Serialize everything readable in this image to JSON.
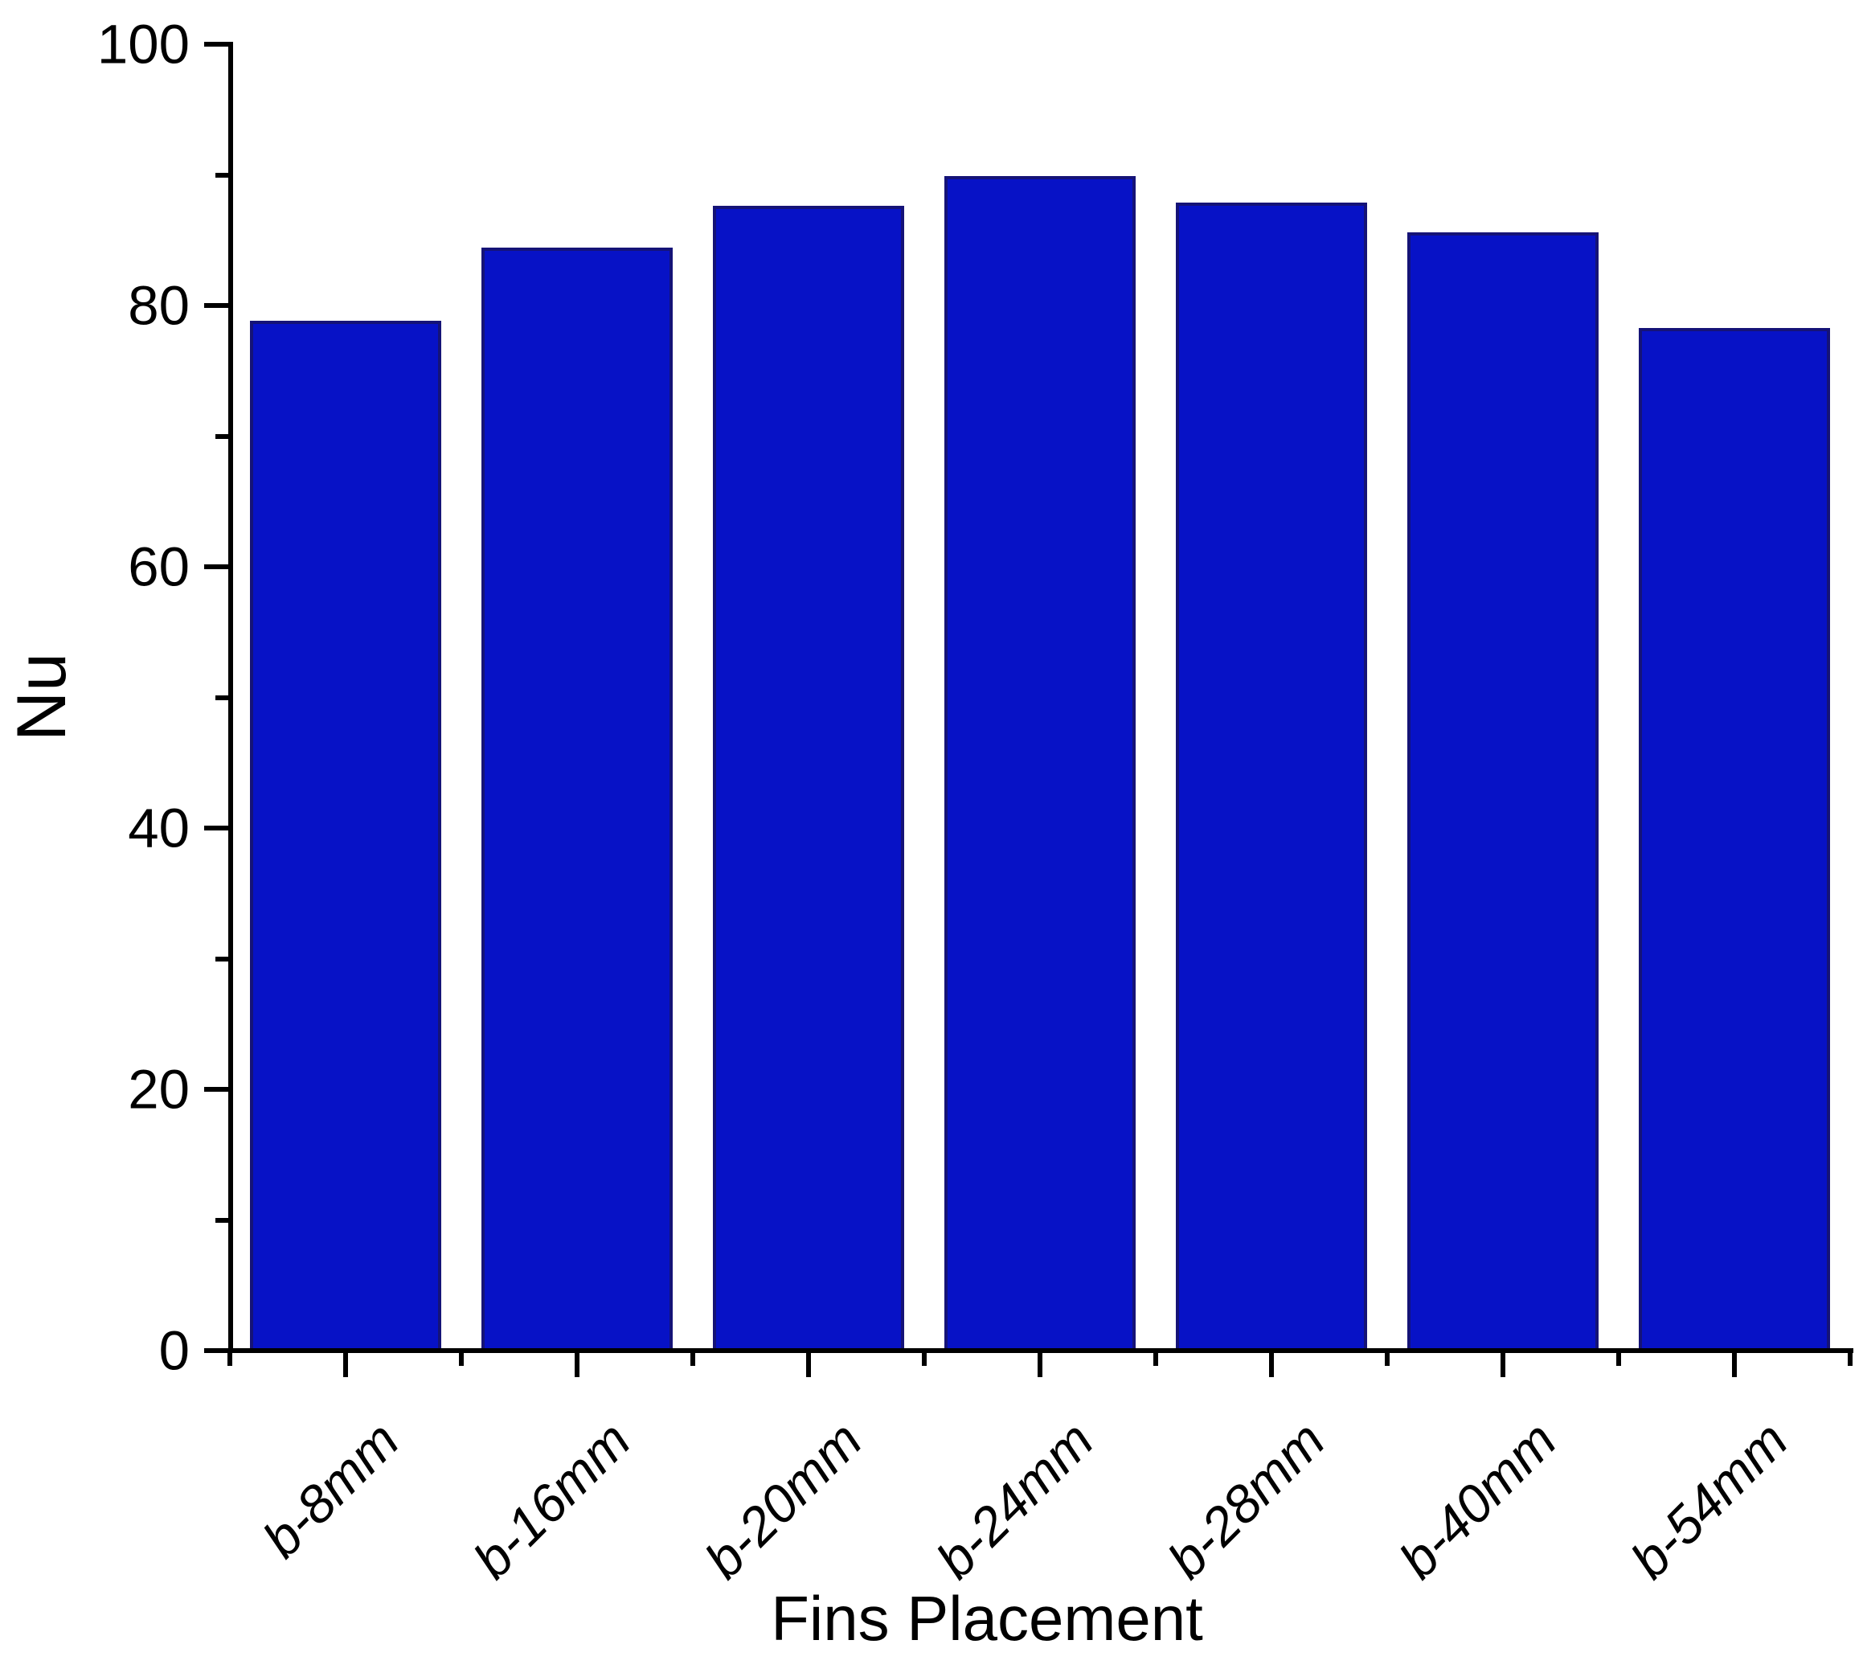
{
  "chart_data": {
    "type": "bar",
    "title": "",
    "categories": [
      "b-8mm",
      "b-16mm",
      "b-20mm",
      "b-24mm",
      "b-28mm",
      "b-40mm",
      "b-54mm"
    ],
    "values": [
      78.8,
      84.4,
      87.6,
      89.9,
      87.9,
      85.6,
      78.3
    ],
    "xlabel": "Fins Placement",
    "ylabel": "Nu",
    "ylim": [
      0,
      100
    ],
    "y_major_ticks": [
      0,
      20,
      40,
      60,
      80,
      100
    ],
    "y_minor_ticks": [
      10,
      30,
      50,
      70,
      90
    ],
    "grid": false,
    "legend": null,
    "x_tick_label_style": "italic",
    "x_tick_label_rotation_deg": -45,
    "colors": {
      "bar_fill": "#0712C6",
      "bar_edge": "#151377",
      "axis": "#000000",
      "text": "#000000",
      "background": "#FFFFFF"
    }
  }
}
